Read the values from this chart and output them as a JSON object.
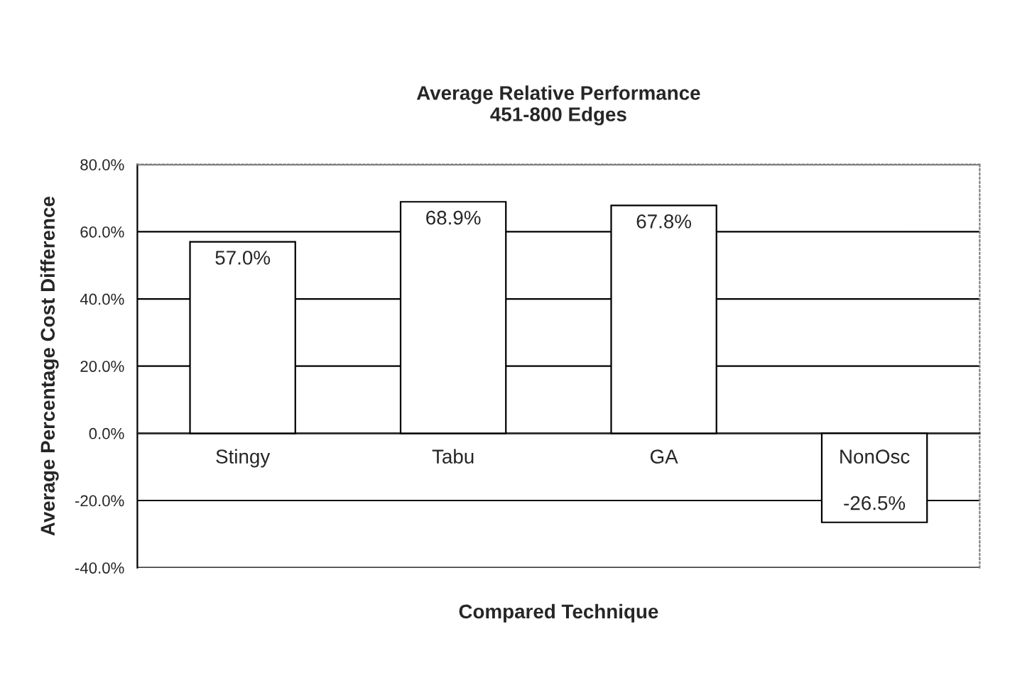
{
  "chart_data": {
    "type": "bar",
    "title": "Average Relative Performance\n451-800 Edges",
    "xlabel": "Compared Technique",
    "ylabel": "Average Percentage Cost Difference",
    "categories": [
      "Stingy",
      "Tabu",
      "GA",
      "NonOsc"
    ],
    "values": [
      57.0,
      68.9,
      67.8,
      -26.5
    ],
    "value_labels": [
      "57.0%",
      "68.9%",
      "67.8%",
      "-26.5%"
    ],
    "color": "#ffffff",
    "ylim": [
      -40,
      80
    ],
    "yticks": [
      {
        "value": -40,
        "label": "-40.0%"
      },
      {
        "value": -20,
        "label": "-20.0%"
      },
      {
        "value": 0,
        "label": "0.0%"
      },
      {
        "value": 20,
        "label": "20.0%"
      },
      {
        "value": 40,
        "label": "40.0%"
      },
      {
        "value": 60,
        "label": "60.0%"
      },
      {
        "value": 80,
        "label": "80.0%"
      }
    ],
    "grid": "y"
  }
}
